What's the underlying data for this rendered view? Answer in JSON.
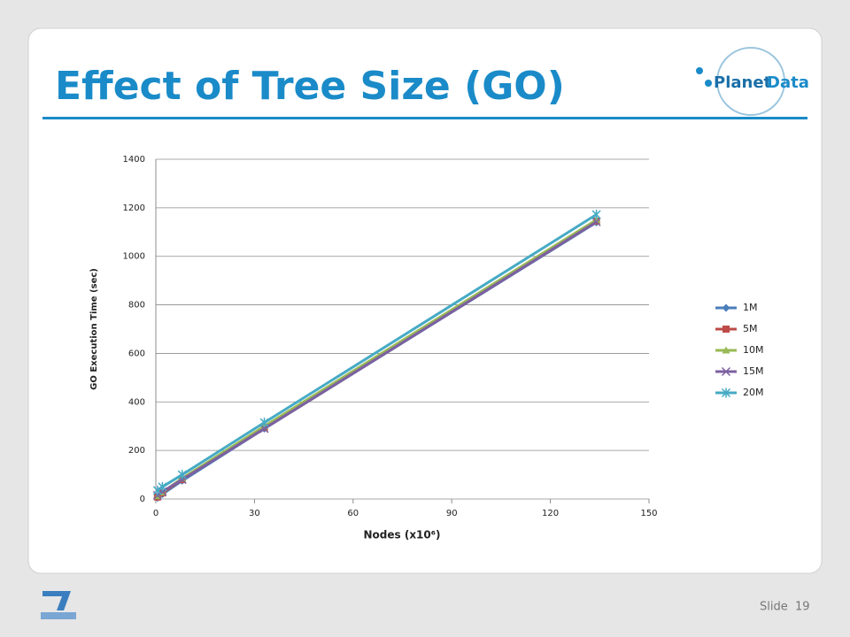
{
  "slide": {
    "title": "Effect of Tree Size (GO)",
    "logo_word1": "Planet",
    "logo_word2": "Data",
    "footer_label": "Slide",
    "footer_number": "19"
  },
  "chart_data": {
    "type": "line",
    "xlabel": "Nodes (x10⁶)",
    "ylabel": "GO Execution Time (sec)",
    "x": [
      0.5,
      2,
      8,
      33,
      134
    ],
    "xlim": [
      0,
      150
    ],
    "xticks": [
      0,
      30,
      60,
      90,
      120,
      150
    ],
    "ylim": [
      0,
      1400
    ],
    "yticks": [
      0,
      200,
      400,
      600,
      800,
      1000,
      1200,
      1400
    ],
    "grid": true,
    "legend": "right",
    "series": [
      {
        "name": "1M",
        "color": "#4a7ebb",
        "marker": "diamond",
        "values": [
          5,
          20,
          75,
          290,
          1140
        ]
      },
      {
        "name": "5M",
        "color": "#be4b48",
        "marker": "square",
        "values": [
          8,
          25,
          80,
          295,
          1145
        ]
      },
      {
        "name": "10M",
        "color": "#98b954",
        "marker": "triangle",
        "values": [
          12,
          28,
          85,
          300,
          1150
        ]
      },
      {
        "name": "15M",
        "color": "#7d60a0",
        "marker": "x",
        "values": [
          15,
          30,
          80,
          290,
          1142
        ]
      },
      {
        "name": "20M",
        "color": "#46aac5",
        "marker": "star",
        "values": [
          35,
          50,
          100,
          315,
          1172
        ]
      }
    ]
  }
}
